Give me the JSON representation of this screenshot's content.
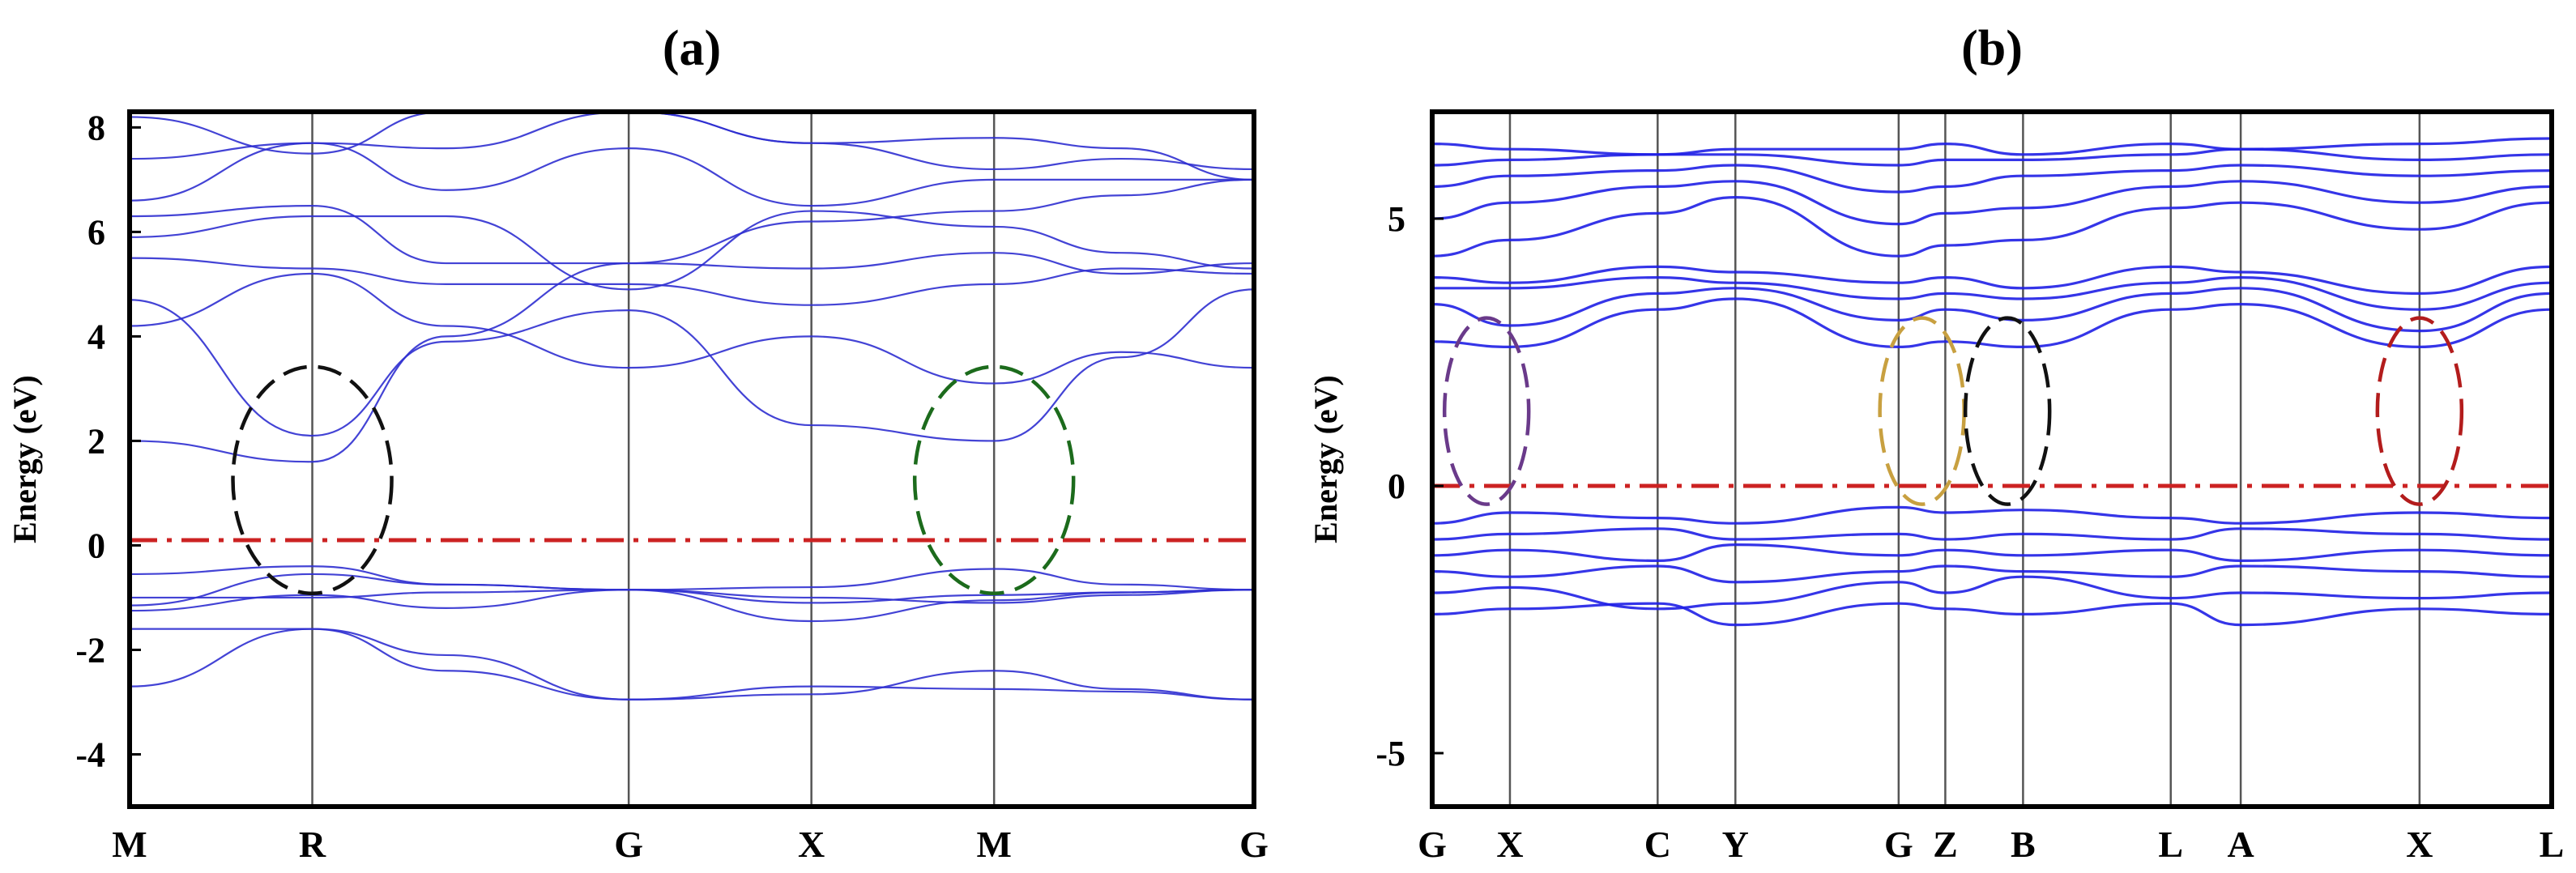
{
  "chart_data": [
    {
      "type": "line",
      "panel_label": "(a)",
      "ylabel": "Energy (eV)",
      "xlabel": "",
      "ylim": [
        -5,
        8.3
      ],
      "y_ticks": [
        -4,
        -2,
        0,
        2,
        4,
        6,
        8
      ],
      "x_ticks": [
        {
          "label": "M",
          "x": 0
        },
        {
          "label": "R",
          "x": 0.866
        },
        {
          "label": "G",
          "x": 2.366
        },
        {
          "label": "X",
          "x": 3.232
        },
        {
          "label": "M",
          "x": 4.098
        },
        {
          "label": "G",
          "x": 5.33
        }
      ],
      "xlim": [
        0,
        5.33
      ],
      "line_color": "#2f2fd0",
      "fermi_level": {
        "value": 0.1,
        "style": "dash-dot",
        "color": "#cc2222"
      },
      "highlight_circles": [
        {
          "center": [
            0.866,
            1.25
          ],
          "color": "#111111"
        },
        {
          "center": [
            4.098,
            1.25
          ],
          "color": "#1c6b1c"
        }
      ],
      "series": [
        {
          "x": [
            0,
            0.866,
            1.5,
            2.366,
            3.232,
            4.098,
            4.7,
            5.33
          ],
          "y": [
            -2.7,
            -1.6,
            -2.4,
            -2.95,
            -2.85,
            -2.4,
            -2.75,
            -2.95
          ]
        },
        {
          "x": [
            0,
            0.866,
            1.5,
            2.366,
            3.232,
            4.098,
            4.7,
            5.33
          ],
          "y": [
            -1.6,
            -1.6,
            -2.1,
            -2.95,
            -2.7,
            -2.75,
            -2.8,
            -2.95
          ]
        },
        {
          "x": [
            0,
            0.866,
            1.5,
            2.366,
            3.232,
            4.098,
            4.7,
            5.33
          ],
          "y": [
            -1.25,
            -0.95,
            -1.2,
            -0.85,
            -1.45,
            -1.05,
            -0.9,
            -0.85
          ]
        },
        {
          "x": [
            0,
            0.866,
            1.5,
            2.366,
            3.232,
            4.098,
            4.7,
            5.33
          ],
          "y": [
            -1.15,
            -0.55,
            -0.75,
            -0.85,
            -0.8,
            -0.45,
            -0.75,
            -0.85
          ]
        },
        {
          "x": [
            0,
            0.866,
            1.5,
            2.366,
            3.232,
            4.098,
            4.7,
            5.33
          ],
          "y": [
            -0.55,
            -0.4,
            -0.75,
            -0.85,
            -1.0,
            -1.1,
            -0.95,
            -0.85
          ]
        },
        {
          "x": [
            0,
            0.866,
            1.5,
            2.366,
            3.232,
            4.098,
            4.7,
            5.33
          ],
          "y": [
            -1.0,
            -1.0,
            -0.9,
            -0.85,
            -1.1,
            -0.95,
            -0.9,
            -0.85
          ]
        },
        {
          "x": [
            0,
            0.866,
            1.5,
            2.366,
            3.232,
            4.098,
            4.7,
            5.33
          ],
          "y": [
            2.0,
            1.6,
            4.0,
            5.4,
            5.3,
            5.6,
            5.2,
            5.4
          ]
        },
        {
          "x": [
            0,
            0.866,
            1.5,
            2.366,
            3.232,
            4.098,
            4.7,
            5.33
          ],
          "y": [
            4.7,
            2.1,
            3.9,
            4.5,
            2.3,
            2.0,
            3.6,
            4.9
          ]
        },
        {
          "x": [
            0,
            0.866,
            1.5,
            2.366,
            3.232,
            4.098,
            4.7,
            5.33
          ],
          "y": [
            4.2,
            5.2,
            4.2,
            3.4,
            4.0,
            3.1,
            3.7,
            3.4
          ]
        },
        {
          "x": [
            0,
            0.866,
            1.5,
            2.366,
            3.232,
            4.098,
            4.7,
            5.33
          ],
          "y": [
            5.5,
            5.3,
            5.0,
            5.0,
            4.6,
            5.0,
            5.3,
            5.2
          ]
        },
        {
          "x": [
            0,
            0.866,
            1.5,
            2.366,
            3.232,
            4.098,
            4.7,
            5.33
          ],
          "y": [
            5.9,
            6.3,
            6.3,
            4.9,
            6.4,
            6.1,
            5.6,
            5.3
          ]
        },
        {
          "x": [
            0,
            0.866,
            1.5,
            2.366,
            3.232,
            4.098,
            4.7,
            5.33
          ],
          "y": [
            6.3,
            6.5,
            5.4,
            5.4,
            6.2,
            6.4,
            6.7,
            7.0
          ]
        },
        {
          "x": [
            0,
            0.866,
            1.5,
            2.366,
            3.232,
            4.098,
            4.7,
            5.33
          ],
          "y": [
            6.6,
            7.7,
            6.8,
            7.6,
            6.5,
            7.0,
            7.0,
            7.0
          ]
        },
        {
          "x": [
            0,
            0.866,
            1.5,
            2.366,
            3.232,
            4.098,
            4.7,
            5.33
          ],
          "y": [
            7.4,
            7.7,
            7.6,
            8.3,
            7.7,
            7.8,
            7.6,
            7.0
          ]
        },
        {
          "x": [
            0,
            0.866,
            1.5,
            2.366,
            3.232,
            4.098,
            4.7,
            5.33
          ],
          "y": [
            8.2,
            7.5,
            8.3,
            8.3,
            7.7,
            7.2,
            7.4,
            7.2
          ]
        }
      ]
    },
    {
      "type": "line",
      "panel_label": "(b)",
      "ylabel": "Energy (eV)",
      "xlabel": "",
      "ylim": [
        -6,
        7
      ],
      "y_ticks": [
        -5,
        0,
        5
      ],
      "x_ticks": [
        {
          "label": "G",
          "x": 0
        },
        {
          "label": "X",
          "x": 0.5
        },
        {
          "label": "C",
          "x": 1.45
        },
        {
          "label": "Y",
          "x": 1.95
        },
        {
          "label": "G",
          "x": 3.0
        },
        {
          "label": "Z",
          "x": 3.3
        },
        {
          "label": "B",
          "x": 3.8
        },
        {
          "label": "L",
          "x": 4.75
        },
        {
          "label": "A",
          "x": 5.2
        },
        {
          "label": "X",
          "x": 6.35
        },
        {
          "label": "L",
          "x": 7.2
        }
      ],
      "xlim": [
        0,
        7.2
      ],
      "line_color": "#1f1fe6",
      "fermi_level": {
        "value": 0.0,
        "style": "dash-dot",
        "color": "#cc2222"
      },
      "highlight_circles": [
        {
          "center": [
            0.35,
            1.4
          ],
          "color": "#6a3a8a"
        },
        {
          "center": [
            3.15,
            1.4
          ],
          "color": "#c8a040"
        },
        {
          "center": [
            3.7,
            1.4
          ],
          "color": "#111111"
        },
        {
          "center": [
            6.35,
            1.4
          ],
          "color": "#b31c1c"
        }
      ],
      "series": [
        {
          "x": [
            0,
            0.5,
            1.45,
            1.95,
            3.0,
            3.3,
            3.8,
            4.75,
            5.2,
            6.35,
            7.2
          ],
          "y": [
            -2.4,
            -2.3,
            -2.2,
            -2.6,
            -2.2,
            -2.3,
            -2.4,
            -2.2,
            -2.6,
            -2.3,
            -2.4
          ]
        },
        {
          "x": [
            0,
            0.5,
            1.45,
            1.95,
            3.0,
            3.3,
            3.8,
            4.75,
            5.2,
            6.35,
            7.2
          ],
          "y": [
            -2.0,
            -1.9,
            -2.3,
            -2.2,
            -1.8,
            -2.0,
            -1.7,
            -2.1,
            -2.0,
            -2.1,
            -2.0
          ]
        },
        {
          "x": [
            0,
            0.5,
            1.45,
            1.95,
            3.0,
            3.3,
            3.8,
            4.75,
            5.2,
            6.35,
            7.2
          ],
          "y": [
            -1.6,
            -1.7,
            -1.5,
            -1.8,
            -1.6,
            -1.5,
            -1.6,
            -1.7,
            -1.5,
            -1.6,
            -1.7
          ]
        },
        {
          "x": [
            0,
            0.5,
            1.45,
            1.95,
            3.0,
            3.3,
            3.8,
            4.75,
            5.2,
            6.35,
            7.2
          ],
          "y": [
            -1.3,
            -1.2,
            -1.4,
            -1.1,
            -1.3,
            -1.2,
            -1.3,
            -1.2,
            -1.4,
            -1.2,
            -1.3
          ]
        },
        {
          "x": [
            0,
            0.5,
            1.45,
            1.95,
            3.0,
            3.3,
            3.8,
            4.75,
            5.2,
            6.35,
            7.2
          ],
          "y": [
            -1.0,
            -0.9,
            -0.8,
            -1.0,
            -0.9,
            -1.0,
            -0.9,
            -1.0,
            -0.8,
            -0.9,
            -1.0
          ]
        },
        {
          "x": [
            0,
            0.5,
            1.45,
            1.95,
            3.0,
            3.3,
            3.8,
            4.75,
            5.2,
            6.35,
            7.2
          ],
          "y": [
            -0.7,
            -0.5,
            -0.6,
            -0.7,
            -0.4,
            -0.5,
            -0.45,
            -0.6,
            -0.7,
            -0.5,
            -0.6
          ]
        },
        {
          "x": [
            0,
            0.5,
            1.45,
            1.95,
            3.0,
            3.3,
            3.8,
            4.75,
            5.2,
            6.35,
            7.2
          ],
          "y": [
            2.7,
            2.6,
            3.3,
            3.5,
            2.6,
            2.7,
            2.6,
            3.3,
            3.4,
            2.6,
            3.3
          ]
        },
        {
          "x": [
            0,
            0.5,
            1.45,
            1.95,
            3.0,
            3.3,
            3.8,
            4.75,
            5.2,
            6.35,
            7.2
          ],
          "y": [
            3.4,
            3.0,
            3.6,
            3.7,
            3.1,
            3.3,
            3.1,
            3.6,
            3.7,
            2.9,
            3.6
          ]
        },
        {
          "x": [
            0,
            0.5,
            1.45,
            1.95,
            3.0,
            3.3,
            3.8,
            4.75,
            5.2,
            6.35,
            7.2
          ],
          "y": [
            3.7,
            3.7,
            3.9,
            3.8,
            3.5,
            3.6,
            3.5,
            3.8,
            3.9,
            3.3,
            3.8
          ]
        },
        {
          "x": [
            0,
            0.5,
            1.45,
            1.95,
            3.0,
            3.3,
            3.8,
            4.75,
            5.2,
            6.35,
            7.2
          ],
          "y": [
            3.9,
            3.8,
            4.1,
            4.0,
            3.8,
            3.9,
            3.7,
            4.1,
            4.0,
            3.6,
            4.1
          ]
        },
        {
          "x": [
            0,
            0.5,
            1.45,
            1.95,
            3.0,
            3.3,
            3.8,
            4.75,
            5.2,
            6.35,
            7.2
          ],
          "y": [
            4.3,
            4.6,
            5.1,
            5.4,
            4.3,
            4.5,
            4.6,
            5.2,
            5.3,
            4.8,
            5.3
          ]
        },
        {
          "x": [
            0,
            0.5,
            1.45,
            1.95,
            3.0,
            3.3,
            3.8,
            4.75,
            5.2,
            6.35,
            7.2
          ],
          "y": [
            5.0,
            5.3,
            5.6,
            5.7,
            4.9,
            5.1,
            5.2,
            5.6,
            5.7,
            5.3,
            5.6
          ]
        },
        {
          "x": [
            0,
            0.5,
            1.45,
            1.95,
            3.0,
            3.3,
            3.8,
            4.75,
            5.2,
            6.35,
            7.2
          ],
          "y": [
            5.6,
            5.8,
            5.9,
            6.0,
            5.5,
            5.6,
            5.8,
            5.9,
            6.0,
            5.8,
            5.9
          ]
        },
        {
          "x": [
            0,
            0.5,
            1.45,
            1.95,
            3.0,
            3.3,
            3.8,
            4.75,
            5.2,
            6.35,
            7.2
          ],
          "y": [
            6.0,
            6.1,
            6.2,
            6.2,
            6.0,
            6.1,
            6.1,
            6.2,
            6.3,
            6.1,
            6.2
          ]
        },
        {
          "x": [
            0,
            0.5,
            1.45,
            1.95,
            3.0,
            3.3,
            3.8,
            4.75,
            5.2,
            6.35,
            7.2
          ],
          "y": [
            6.4,
            6.3,
            6.2,
            6.3,
            6.3,
            6.4,
            6.2,
            6.4,
            6.3,
            6.4,
            6.5
          ]
        }
      ]
    }
  ]
}
